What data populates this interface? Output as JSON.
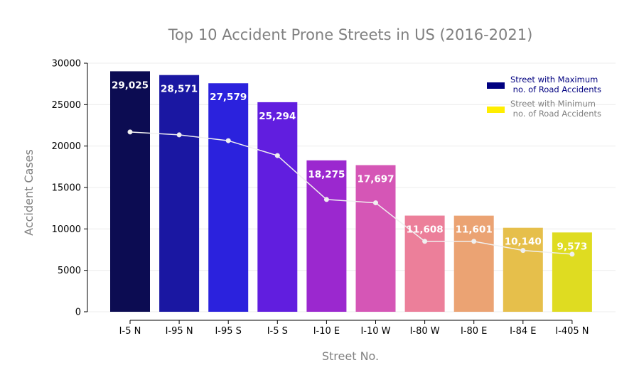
{
  "chart_data": {
    "type": "bar",
    "title": "Top 10 Accident Prone Streets in US (2016-2021)",
    "xlabel": "Street No.",
    "ylabel": "Accident Cases",
    "categories": [
      "I-5 N",
      "I-95 N",
      "I-95 S",
      "I-5 S",
      "I-10 E",
      "I-10 W",
      "I-80 W",
      "I-80 E",
      "I-84 E",
      "I-405 N"
    ],
    "values": [
      29025,
      28571,
      27579,
      25294,
      18275,
      17697,
      11608,
      11601,
      10140,
      9573
    ],
    "value_labels": [
      "29,025",
      "28,571",
      "27,579",
      "25,294",
      "18,275",
      "17,697",
      "11,608",
      "11,601",
      "10,140",
      "9,573"
    ],
    "line_values": [
      21700,
      21350,
      20650,
      18850,
      13550,
      13150,
      8500,
      8500,
      7400,
      6950
    ],
    "bar_colors": [
      "#0c0c52",
      "#1a17a2",
      "#2b22dd",
      "#611edf",
      "#9b28cf",
      "#d556b6",
      "#ec7f9a",
      "#eba373",
      "#e6bf4b",
      "#dfdc21"
    ],
    "line_color": "#f0f0f0",
    "ylim": [
      0,
      30000
    ],
    "yticks": [
      0,
      5000,
      10000,
      15000,
      20000,
      25000,
      30000
    ],
    "grid": true,
    "legend": {
      "placement": "top-right",
      "entries": [
        {
          "label": "Street with Maximum\n no. of Road Accidents",
          "color": "#000080",
          "text_color": "#000080"
        },
        {
          "label": "Street with Minimum\n no. of Road Accidents",
          "color": "#ffee00",
          "text_color": "#808080"
        }
      ]
    }
  }
}
